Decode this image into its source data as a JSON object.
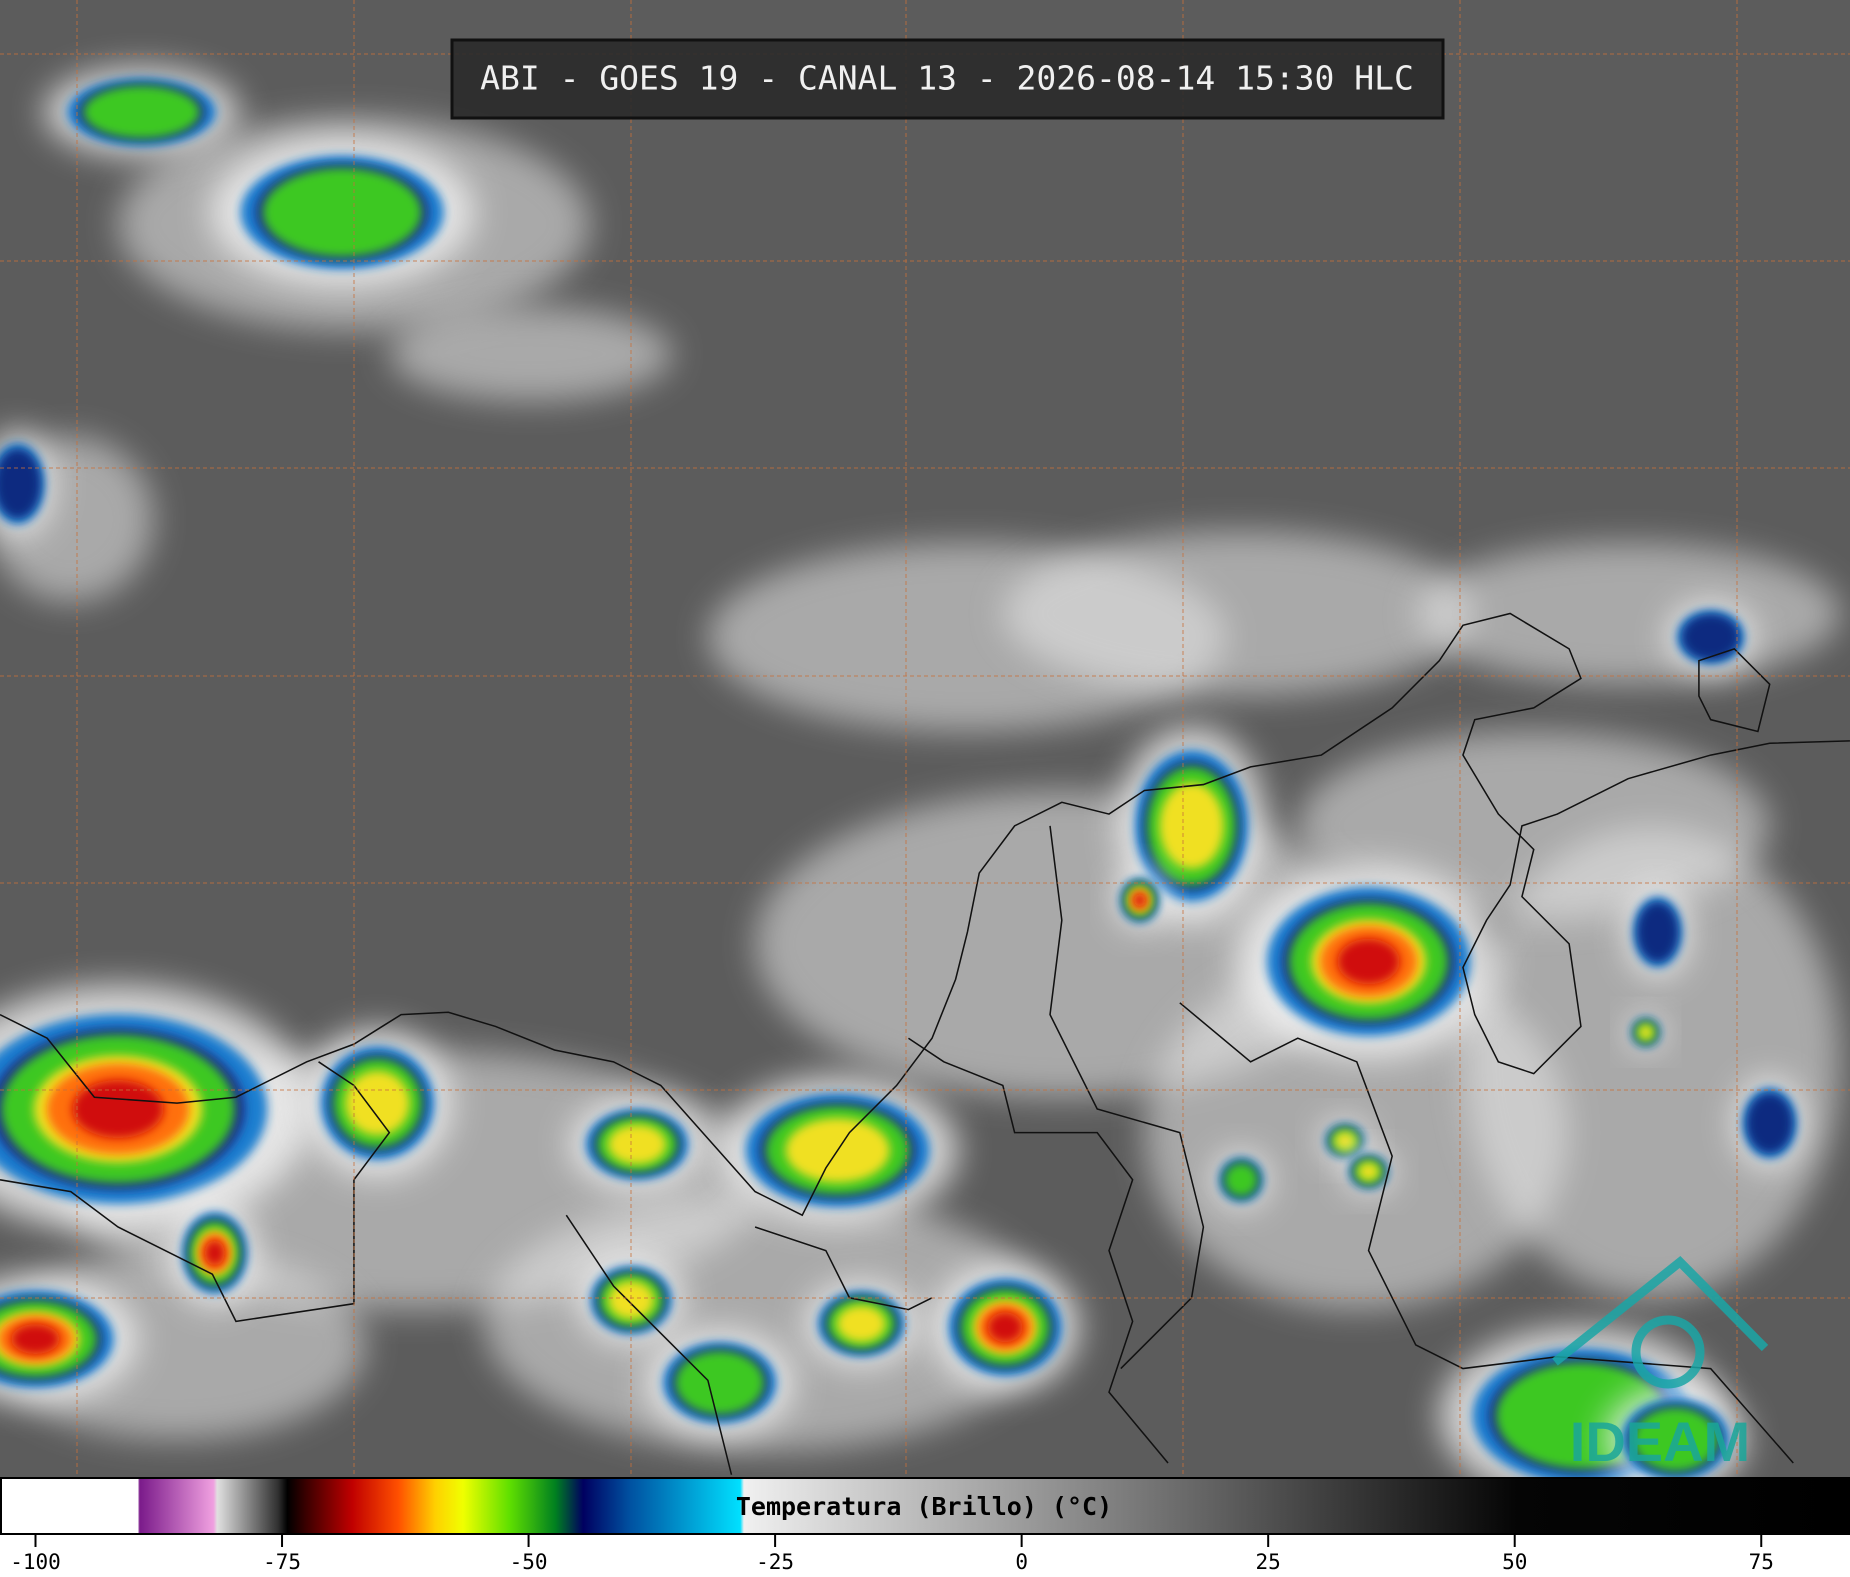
{
  "header": {
    "title": "ABI - GOES 19 - CANAL 13 - 2026-08-14 15:30 HLC"
  },
  "colorbar": {
    "label": "Temperatura (Brillo) (°C)",
    "lim": [
      -103.6,
      84
    ],
    "ticks": [
      -100,
      -75,
      -50,
      -25,
      0,
      25,
      50,
      75
    ]
  },
  "logo": {
    "text": "IDEAM"
  }
}
